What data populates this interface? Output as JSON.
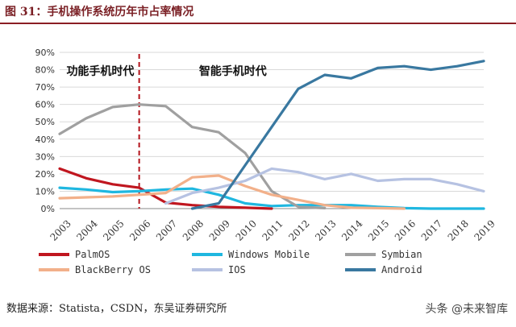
{
  "header": {
    "figure_title": "图 31：手机操作系统历年市占率情况"
  },
  "source_note": "数据来源：Statista，CSDN，东吴证券研究所",
  "watermark": "头条 @未来智库",
  "chart_data": {
    "type": "line",
    "xlabel": "",
    "ylabel": "",
    "ylim": [
      0,
      90
    ],
    "yticks": [
      "0%",
      "10%",
      "20%",
      "30%",
      "40%",
      "50%",
      "60%",
      "70%",
      "80%",
      "90%"
    ],
    "x": [
      "2003",
      "2004",
      "2005",
      "2006",
      "2007",
      "2008",
      "2009",
      "2010",
      "2011",
      "2012",
      "2013",
      "2014",
      "2015",
      "2016",
      "2017",
      "2018",
      "2019"
    ],
    "grid": true,
    "legend_position": "bottom",
    "annotations": [
      {
        "text": "功能手机时代",
        "x": "2003.5"
      },
      {
        "text": "智能手机时代",
        "x": "2008.5"
      }
    ],
    "divider_x": "2006",
    "series": [
      {
        "name": "PalmOS",
        "color": "#c0161f",
        "values": [
          23,
          17.5,
          14,
          12,
          3.5,
          2,
          1,
          0.5,
          0,
          null,
          null,
          null,
          null,
          null,
          null,
          null,
          null
        ]
      },
      {
        "name": "Windows Mobile",
        "color": "#1fb7e0",
        "values": [
          12,
          11,
          9.5,
          10,
          11,
          11.5,
          8,
          3,
          1.5,
          2,
          2,
          2,
          1,
          0.3,
          0,
          0,
          0
        ]
      },
      {
        "name": "Symbian",
        "color": "#a0a0a0",
        "values": [
          43,
          52,
          58.5,
          60,
          59,
          47,
          44,
          32,
          10,
          1,
          0.3,
          null,
          null,
          null,
          null,
          null,
          null
        ]
      },
      {
        "name": "BlackBerry OS",
        "color": "#f2b08a",
        "values": [
          6,
          6.5,
          7,
          8,
          9,
          18,
          19,
          13,
          8,
          5,
          2,
          0.5,
          0.3,
          0,
          null,
          null,
          null
        ]
      },
      {
        "name": "IOS",
        "color": "#b6c2e2",
        "values": [
          null,
          null,
          null,
          null,
          3,
          9,
          12,
          16,
          23,
          21,
          17,
          20,
          16,
          17,
          17,
          14,
          10
        ]
      },
      {
        "name": "Android",
        "color": "#3978a0",
        "values": [
          null,
          null,
          null,
          null,
          null,
          0,
          3,
          25,
          47,
          69,
          77,
          75,
          81,
          82,
          80,
          82,
          85
        ]
      }
    ]
  }
}
